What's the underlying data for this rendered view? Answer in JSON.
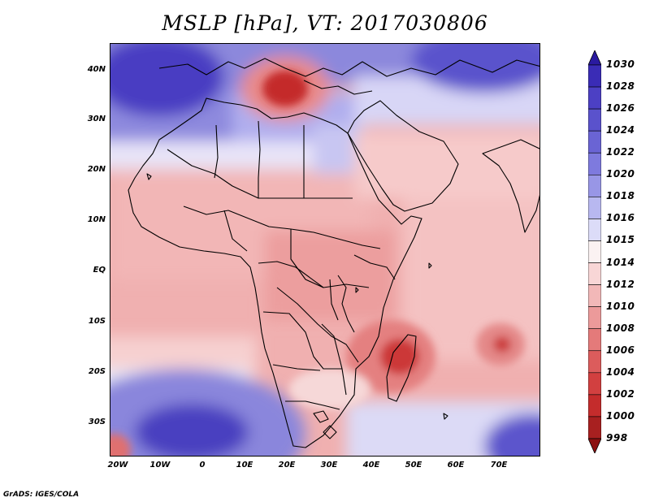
{
  "title": "MSLP [hPa], VT: 2017030806",
  "credit": "GrADS: IGES/COLA",
  "lat_labels": [
    "40N",
    "30N",
    "20N",
    "10N",
    "EQ",
    "10S",
    "20S",
    "30S"
  ],
  "lon_labels": [
    "20W",
    "10W",
    "0",
    "10E",
    "20E",
    "30E",
    "40E",
    "50E",
    "60E",
    "70E"
  ],
  "colorbar": {
    "levels": [
      "1030",
      "1028",
      "1026",
      "1024",
      "1022",
      "1020",
      "1018",
      "1016",
      "1015",
      "1014",
      "1012",
      "1010",
      "1008",
      "1006",
      "1004",
      "1002",
      "1000",
      "998"
    ],
    "colors": [
      "#2a1aa0",
      "#3a2cb6",
      "#4c40c4",
      "#5a52cc",
      "#6a64d4",
      "#7e7ade",
      "#9896e6",
      "#b8b8f0",
      "#dcdcf8",
      "#fbf2f2",
      "#f8d6d6",
      "#f2b8b8",
      "#ec9a9a",
      "#e47a7a",
      "#dc5c5c",
      "#d24040",
      "#c42c2c",
      "#a82020",
      "#8c1010"
    ]
  },
  "chart_data": {
    "type": "heatmap",
    "title": "MSLP [hPa], VT: 2017030806",
    "variable": "Mean sea level pressure",
    "units": "hPa",
    "valid_time": "2017030806",
    "lon_range": [
      -22,
      80
    ],
    "lat_range": [
      -37,
      45
    ],
    "x_ticks": [
      "20W",
      "10W",
      "0",
      "10E",
      "20E",
      "30E",
      "40E",
      "50E",
      "60E",
      "70E"
    ],
    "y_ticks": [
      "40N",
      "30N",
      "20N",
      "10N",
      "EQ",
      "10S",
      "20S",
      "30S"
    ],
    "features": [
      {
        "name": "low over central Mediterranean",
        "lon": 20,
        "lat": 37,
        "value": 1000
      },
      {
        "name": "low over Madagascar channel",
        "lon": 48,
        "lat": -18,
        "value": 1004
      },
      {
        "name": "low east of Madagascar",
        "lon": 71,
        "lat": -15,
        "value": 1006
      },
      {
        "name": "South Atlantic high",
        "lon": -5,
        "lat": -31,
        "value": 1024
      },
      {
        "name": "North Africa high",
        "lon": -8,
        "lat": 33,
        "value": 1024
      },
      {
        "name": "South Indian Ocean high",
        "lon": 78,
        "lat": -34,
        "value": 1026
      }
    ]
  }
}
